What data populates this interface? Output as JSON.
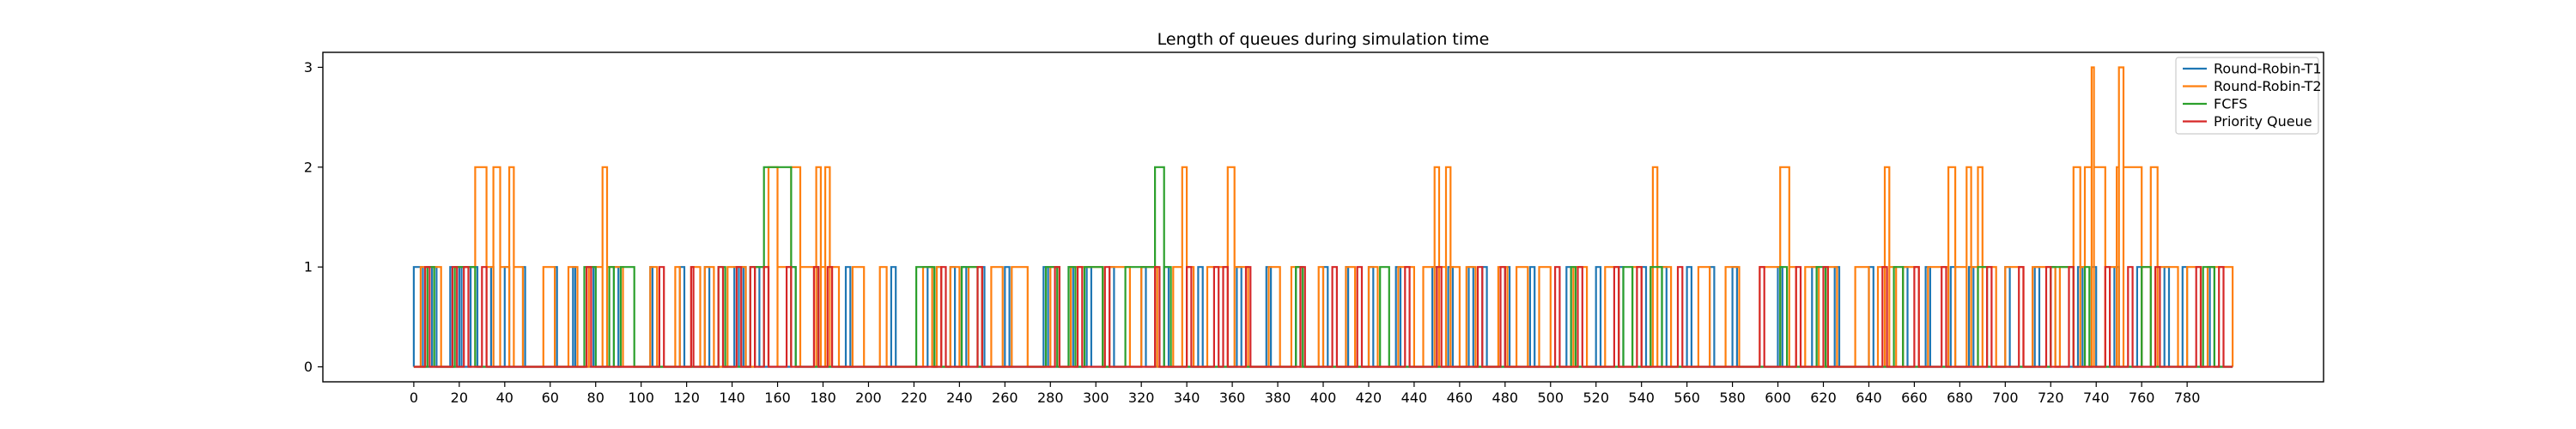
{
  "chart_data": {
    "type": "line",
    "title": "Length of queues during simulation time",
    "xlabel": "",
    "ylabel": "",
    "xlim": [
      -40,
      840
    ],
    "ylim": [
      -0.15,
      3.15
    ],
    "xticks": [
      0,
      20,
      40,
      60,
      80,
      100,
      120,
      140,
      160,
      180,
      200,
      220,
      240,
      260,
      280,
      300,
      320,
      340,
      360,
      380,
      400,
      420,
      440,
      460,
      480,
      500,
      520,
      540,
      560,
      580,
      600,
      620,
      640,
      660,
      680,
      700,
      720,
      740,
      760,
      780
    ],
    "yticks": [
      0,
      1,
      2,
      3
    ],
    "grid": false,
    "legend_position": "top-right",
    "series": [
      {
        "name": "Round-Robin-T1",
        "color": "#1f77b4",
        "pulses": [
          [
            0,
            1,
            4
          ],
          [
            8,
            1,
            10
          ],
          [
            16,
            1,
            17
          ],
          [
            20,
            1,
            21
          ],
          [
            25,
            1,
            28
          ],
          [
            34,
            1,
            35
          ],
          [
            40,
            1,
            42
          ],
          [
            48,
            1,
            49
          ],
          [
            62,
            1,
            63
          ],
          [
            70,
            1,
            71
          ],
          [
            79,
            1,
            80
          ],
          [
            88,
            1,
            90
          ],
          [
            104,
            1,
            105
          ],
          [
            117,
            1,
            119
          ],
          [
            128,
            1,
            130
          ],
          [
            141,
            1,
            143
          ],
          [
            145,
            1,
            146
          ],
          [
            150,
            1,
            152
          ],
          [
            166,
            1,
            168
          ],
          [
            177,
            1,
            178
          ],
          [
            190,
            1,
            192
          ],
          [
            210,
            1,
            212
          ],
          [
            226,
            1,
            228
          ],
          [
            230,
            1,
            232
          ],
          [
            236,
            1,
            238
          ],
          [
            241,
            1,
            243
          ],
          [
            250,
            1,
            251
          ],
          [
            260,
            1,
            262
          ],
          [
            277,
            1,
            279
          ],
          [
            288,
            1,
            290
          ],
          [
            296,
            1,
            298
          ],
          [
            306,
            1,
            308
          ],
          [
            320,
            1,
            322
          ],
          [
            330,
            1,
            332
          ],
          [
            345,
            1,
            347
          ],
          [
            362,
            1,
            364
          ],
          [
            375,
            1,
            377
          ],
          [
            388,
            1,
            390
          ],
          [
            400,
            1,
            402
          ],
          [
            410,
            1,
            411
          ],
          [
            420,
            1,
            422
          ],
          [
            432,
            1,
            434
          ],
          [
            448,
            1,
            450
          ],
          [
            455,
            1,
            457
          ],
          [
            464,
            1,
            466
          ],
          [
            470,
            1,
            472
          ],
          [
            480,
            1,
            482
          ],
          [
            491,
            1,
            493
          ],
          [
            507,
            1,
            509
          ],
          [
            520,
            1,
            522
          ],
          [
            530,
            1,
            532
          ],
          [
            540,
            1,
            542
          ],
          [
            549,
            1,
            551
          ],
          [
            560,
            1,
            562
          ],
          [
            570,
            1,
            572
          ],
          [
            580,
            1,
            582
          ],
          [
            600,
            1,
            602
          ],
          [
            615,
            1,
            617
          ],
          [
            625,
            1,
            627
          ],
          [
            640,
            1,
            642
          ],
          [
            655,
            1,
            657
          ],
          [
            665,
            1,
            667
          ],
          [
            676,
            1,
            678
          ],
          [
            684,
            1,
            686
          ],
          [
            700,
            1,
            702
          ],
          [
            713,
            1,
            715
          ],
          [
            720,
            1,
            722
          ],
          [
            732,
            1,
            734
          ],
          [
            738,
            1,
            740
          ],
          [
            748,
            1,
            750
          ],
          [
            758,
            1,
            760
          ],
          [
            770,
            1,
            772
          ],
          [
            778,
            1,
            780
          ],
          [
            790,
            1,
            792
          ]
        ]
      },
      {
        "name": "Round-Robin-T2",
        "color": "#ff7f0e",
        "pulses": [
          [
            3,
            1,
            12
          ],
          [
            18,
            1,
            27
          ],
          [
            27,
            2,
            32
          ],
          [
            32,
            1,
            35
          ],
          [
            35,
            2,
            38
          ],
          [
            38,
            1,
            42
          ],
          [
            42,
            2,
            44
          ],
          [
            44,
            1,
            48
          ],
          [
            57,
            1,
            62
          ],
          [
            68,
            1,
            72
          ],
          [
            77,
            1,
            83
          ],
          [
            83,
            2,
            85
          ],
          [
            85,
            1,
            92
          ],
          [
            104,
            1,
            107
          ],
          [
            115,
            1,
            117
          ],
          [
            122,
            1,
            126
          ],
          [
            128,
            1,
            132
          ],
          [
            138,
            1,
            146
          ],
          [
            150,
            1,
            156
          ],
          [
            156,
            2,
            160
          ],
          [
            160,
            1,
            166
          ],
          [
            166,
            2,
            170
          ],
          [
            170,
            1,
            177
          ],
          [
            177,
            2,
            179
          ],
          [
            179,
            1,
            181
          ],
          [
            181,
            2,
            183
          ],
          [
            183,
            1,
            187
          ],
          [
            193,
            1,
            198
          ],
          [
            205,
            1,
            208
          ],
          [
            224,
            1,
            228
          ],
          [
            230,
            1,
            232
          ],
          [
            236,
            1,
            240
          ],
          [
            244,
            1,
            250
          ],
          [
            254,
            1,
            259
          ],
          [
            263,
            1,
            270
          ],
          [
            280,
            1,
            284
          ],
          [
            289,
            1,
            303
          ],
          [
            306,
            1,
            315
          ],
          [
            320,
            1,
            327
          ],
          [
            334,
            1,
            338
          ],
          [
            338,
            2,
            340
          ],
          [
            340,
            1,
            343
          ],
          [
            349,
            1,
            358
          ],
          [
            358,
            2,
            361
          ],
          [
            361,
            1,
            367
          ],
          [
            376,
            1,
            381
          ],
          [
            386,
            1,
            390
          ],
          [
            398,
            1,
            400
          ],
          [
            410,
            1,
            414
          ],
          [
            420,
            1,
            424
          ],
          [
            433,
            1,
            440
          ],
          [
            444,
            1,
            449
          ],
          [
            449,
            2,
            451
          ],
          [
            451,
            1,
            454
          ],
          [
            454,
            2,
            456
          ],
          [
            456,
            1,
            460
          ],
          [
            463,
            1,
            467
          ],
          [
            477,
            1,
            481
          ],
          [
            485,
            1,
            490
          ],
          [
            495,
            1,
            500
          ],
          [
            510,
            1,
            516
          ],
          [
            524,
            1,
            530
          ],
          [
            536,
            1,
            540
          ],
          [
            544,
            1,
            545
          ],
          [
            545,
            2,
            547
          ],
          [
            547,
            1,
            553
          ],
          [
            565,
            1,
            570
          ],
          [
            577,
            1,
            583
          ],
          [
            592,
            1,
            601
          ],
          [
            601,
            2,
            605
          ],
          [
            605,
            1,
            608
          ],
          [
            612,
            1,
            618
          ],
          [
            622,
            1,
            626
          ],
          [
            634,
            1,
            640
          ],
          [
            644,
            1,
            647
          ],
          [
            647,
            2,
            649
          ],
          [
            649,
            1,
            652
          ],
          [
            655,
            1,
            662
          ],
          [
            666,
            1,
            675
          ],
          [
            675,
            2,
            678
          ],
          [
            678,
            1,
            683
          ],
          [
            683,
            2,
            685
          ],
          [
            685,
            1,
            688
          ],
          [
            688,
            2,
            690
          ],
          [
            690,
            1,
            696
          ],
          [
            700,
            1,
            708
          ],
          [
            712,
            1,
            722
          ],
          [
            724,
            1,
            730
          ],
          [
            730,
            2,
            733
          ],
          [
            733,
            1,
            735
          ],
          [
            735,
            2,
            738
          ],
          [
            738,
            3,
            739
          ],
          [
            739,
            2,
            744
          ],
          [
            744,
            1,
            749
          ],
          [
            749,
            2,
            750
          ],
          [
            750,
            3,
            752
          ],
          [
            752,
            2,
            760
          ],
          [
            760,
            1,
            764
          ],
          [
            764,
            2,
            767
          ],
          [
            767,
            1,
            776
          ],
          [
            780,
            1,
            786
          ],
          [
            789,
            1,
            800
          ]
        ]
      },
      {
        "name": "FCFS",
        "color": "#2ca02c",
        "pulses": [
          [
            6,
            1,
            9
          ],
          [
            18,
            1,
            27
          ],
          [
            75,
            1,
            80
          ],
          [
            86,
            1,
            88
          ],
          [
            91,
            1,
            97
          ],
          [
            134,
            1,
            137
          ],
          [
            148,
            1,
            154
          ],
          [
            154,
            2,
            166
          ],
          [
            166,
            1,
            168
          ],
          [
            221,
            1,
            229
          ],
          [
            241,
            1,
            248
          ],
          [
            278,
            1,
            283
          ],
          [
            288,
            1,
            291
          ],
          [
            295,
            1,
            303
          ],
          [
            313,
            1,
            326
          ],
          [
            326,
            2,
            330
          ],
          [
            330,
            1,
            333
          ],
          [
            388,
            1,
            391
          ],
          [
            425,
            1,
            429
          ],
          [
            509,
            1,
            511
          ],
          [
            532,
            1,
            536
          ],
          [
            544,
            1,
            549
          ],
          [
            601,
            1,
            604
          ],
          [
            617,
            1,
            621
          ],
          [
            651,
            1,
            655
          ],
          [
            688,
            1,
            692
          ],
          [
            720,
            1,
            730
          ],
          [
            735,
            1,
            737
          ],
          [
            760,
            1,
            764
          ],
          [
            787,
            1,
            792
          ]
        ]
      },
      {
        "name": "Priority Queue",
        "color": "#d62728",
        "pulses": [
          [
            5,
            1,
            7
          ],
          [
            17,
            1,
            19
          ],
          [
            22,
            1,
            24
          ],
          [
            30,
            1,
            32
          ],
          [
            76,
            1,
            78
          ],
          [
            108,
            1,
            110
          ],
          [
            122,
            1,
            123
          ],
          [
            134,
            1,
            136
          ],
          [
            142,
            1,
            144
          ],
          [
            148,
            1,
            150
          ],
          [
            154,
            1,
            156
          ],
          [
            164,
            1,
            166
          ],
          [
            176,
            1,
            178
          ],
          [
            182,
            1,
            184
          ],
          [
            232,
            1,
            234
          ],
          [
            248,
            1,
            250
          ],
          [
            282,
            1,
            284
          ],
          [
            292,
            1,
            294
          ],
          [
            304,
            1,
            306
          ],
          [
            326,
            1,
            328
          ],
          [
            340,
            1,
            342
          ],
          [
            352,
            1,
            354
          ],
          [
            356,
            1,
            358
          ],
          [
            366,
            1,
            368
          ],
          [
            390,
            1,
            392
          ],
          [
            404,
            1,
            406
          ],
          [
            415,
            1,
            417
          ],
          [
            436,
            1,
            438
          ],
          [
            450,
            1,
            452
          ],
          [
            468,
            1,
            470
          ],
          [
            478,
            1,
            480
          ],
          [
            502,
            1,
            504
          ],
          [
            512,
            1,
            514
          ],
          [
            528,
            1,
            530
          ],
          [
            538,
            1,
            540
          ],
          [
            556,
            1,
            558
          ],
          [
            592,
            1,
            594
          ],
          [
            608,
            1,
            610
          ],
          [
            620,
            1,
            622
          ],
          [
            646,
            1,
            648
          ],
          [
            660,
            1,
            662
          ],
          [
            672,
            1,
            674
          ],
          [
            692,
            1,
            694
          ],
          [
            706,
            1,
            708
          ],
          [
            718,
            1,
            720
          ],
          [
            728,
            1,
            730
          ],
          [
            744,
            1,
            746
          ],
          [
            754,
            1,
            756
          ],
          [
            766,
            1,
            768
          ],
          [
            784,
            1,
            786
          ],
          [
            794,
            1,
            796
          ]
        ]
      }
    ],
    "x_end": 800
  }
}
